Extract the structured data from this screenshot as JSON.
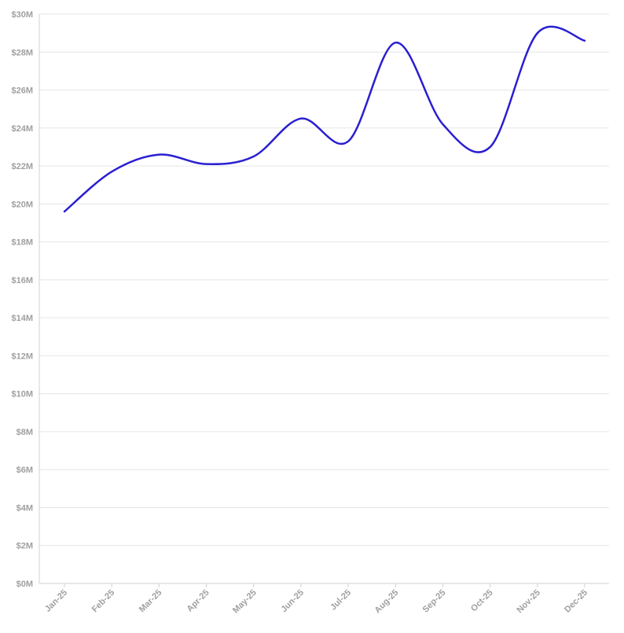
{
  "chart_data": {
    "type": "line",
    "title": "",
    "xlabel": "",
    "ylabel": "",
    "categories": [
      "Jan-25",
      "Feb-25",
      "Mar-25",
      "Apr-25",
      "May-25",
      "Jun-25",
      "Jul-25",
      "Aug-25",
      "Sep-25",
      "Oct-25",
      "Nov-25",
      "Dec-25"
    ],
    "series": [
      {
        "color": "#2a1fd1",
        "values": [
          19.6,
          21.7,
          22.6,
          22.1,
          22.5,
          24.5,
          23.3,
          28.5,
          24.2,
          23.0,
          29.0,
          28.6
        ]
      }
    ],
    "ylim": [
      0,
      30
    ],
    "y_tick_step": 2,
    "y_tick_prefix": "$",
    "y_tick_suffix": "M",
    "grid": true,
    "legend": "none",
    "smooth": true
  }
}
